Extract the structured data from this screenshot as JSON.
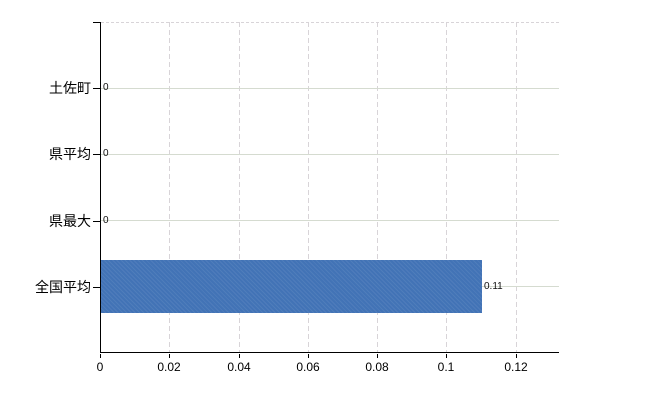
{
  "chart_data": {
    "type": "bar",
    "orientation": "horizontal",
    "title": "",
    "xlabel": "",
    "ylabel": "",
    "categories": [
      "土佐町",
      "県平均",
      "県最大",
      "全国平均"
    ],
    "values": [
      0,
      0,
      0,
      0.11
    ],
    "data_labels": [
      "0",
      "0",
      "0",
      "0.11"
    ],
    "x_ticks": [
      0,
      0.02,
      0.04,
      0.06,
      0.08,
      0.1,
      0.12
    ],
    "x_tick_labels": [
      "0",
      "0.02",
      "0.04",
      "0.06",
      "0.08",
      "0.1",
      "0.12"
    ],
    "xlim": [
      0,
      0.1325
    ],
    "grid": "on",
    "legend": "none",
    "colors": {
      "bar": "#4273b6",
      "horizontal_grid": "#d5dbd0",
      "vertical_grid": "#d8d4d8",
      "axis": "#000000",
      "text": "#000000",
      "background": "#ffffff"
    }
  }
}
